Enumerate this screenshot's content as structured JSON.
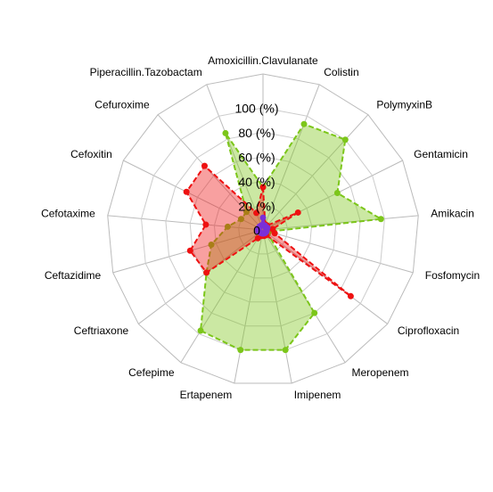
{
  "chart_data": {
    "type": "radar",
    "categories": [
      "Amoxicillin.Clavulanate",
      "Colistin",
      "PolymyxinB",
      "Gentamicin",
      "Amikacin",
      "Fosfomycin",
      "Ciprofloxacin",
      "Meropenem",
      "Imipenem",
      "Ertapenem",
      "Cefepime",
      "Ceftriaxone",
      "Ceftazidime",
      "Cefotaxime",
      "Cefoxitin",
      "Cefuroxime",
      "Piperacillin.Tazobactam"
    ],
    "series": [
      {
        "color": "#7cc61a",
        "values": [
          35,
          93,
          100,
          68,
          97,
          5,
          5,
          80,
          100,
          100,
          97,
          58,
          44,
          29,
          20,
          20,
          85
        ]
      },
      {
        "color": "#ee1111",
        "values": [
          35,
          5,
          5,
          32,
          8,
          10,
          90,
          5,
          5,
          5,
          8,
          58,
          62,
          47,
          70,
          71,
          15
        ]
      },
      {
        "color": "#7a30d8",
        "values": [
          10,
          4,
          3,
          4,
          3,
          3,
          3,
          3,
          3,
          3,
          3,
          3,
          4,
          4,
          4,
          4,
          4
        ]
      }
    ],
    "ylim": [
      0,
      100
    ],
    "yticks": [
      0,
      {
        "value": 20,
        "label": "20 (%)"
      },
      {
        "value": 40,
        "label": "40 (%)"
      },
      {
        "value": 60,
        "label": "60 (%)"
      },
      {
        "value": 80,
        "label": "80 (%)"
      },
      {
        "value": 100,
        "label": "100 (%)"
      }
    ],
    "grid": true
  }
}
